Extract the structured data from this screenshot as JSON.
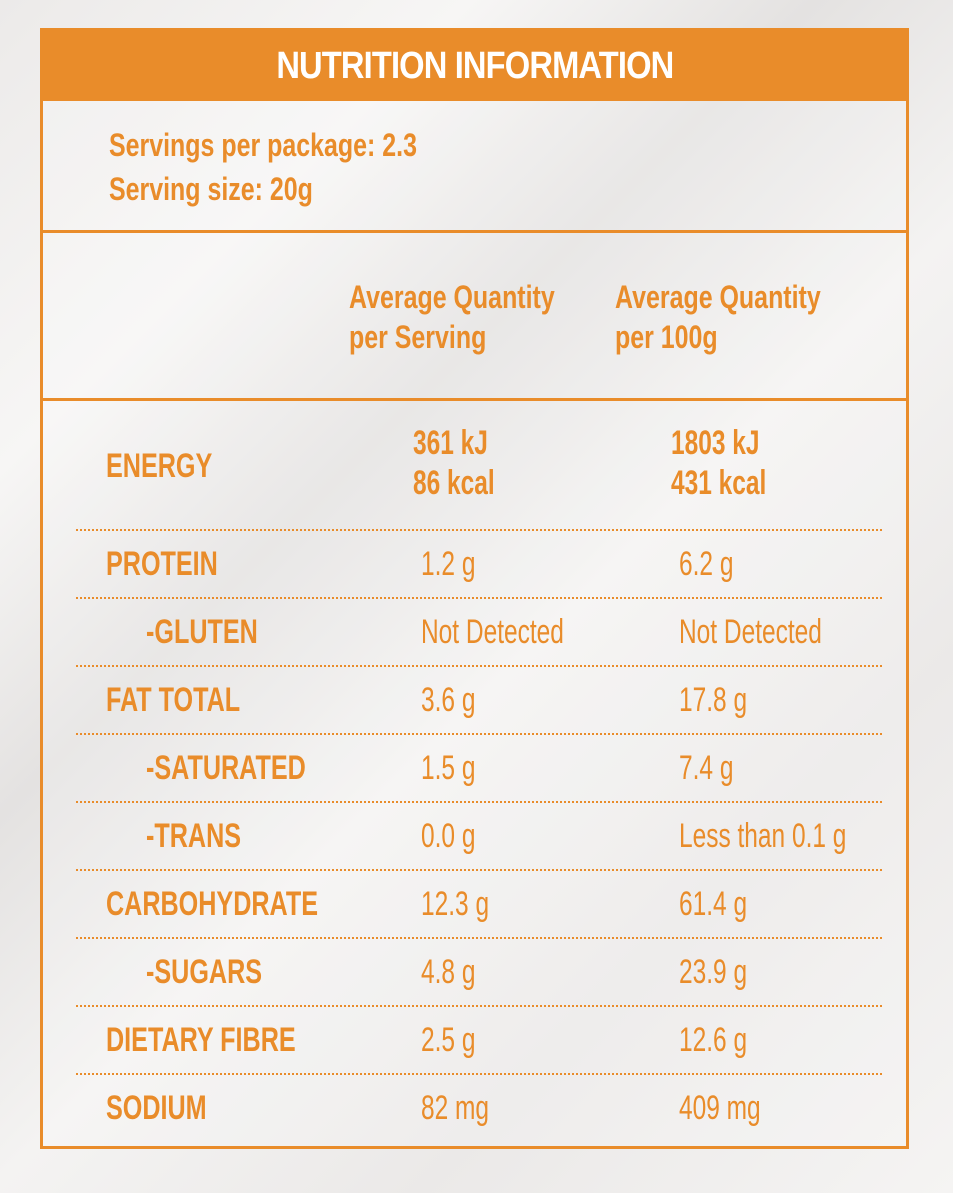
{
  "title": "NUTRITION INFORMATION",
  "servings_per_package": "Servings per package: 2.3",
  "serving_size": "Serving size: 20g",
  "columns": {
    "per_serving": [
      "Average Quantity",
      "per Serving"
    ],
    "per_100g": [
      "Average Quantity",
      "per 100g"
    ]
  },
  "energy": {
    "label": "ENERGY",
    "per_serving": [
      "361 kJ",
      "86 kcal"
    ],
    "per_100g": [
      "1803 kJ",
      "431 kcal"
    ]
  },
  "rows": [
    {
      "label": "PROTEIN",
      "sub": false,
      "per_serving": "1.2 g",
      "per_100g": "6.2 g"
    },
    {
      "label": "-GLUTEN",
      "sub": true,
      "per_serving": "Not Detected",
      "per_100g": "Not Detected"
    },
    {
      "label": "FAT TOTAL",
      "sub": false,
      "per_serving": "3.6 g",
      "per_100g": "17.8 g"
    },
    {
      "label": "-SATURATED",
      "sub": true,
      "per_serving": "1.5 g",
      "per_100g": "7.4 g"
    },
    {
      "label": "-TRANS",
      "sub": true,
      "per_serving": "0.0 g",
      "per_100g": "Less than 0.1 g"
    },
    {
      "label": "CARBOHYDRATE",
      "sub": false,
      "per_serving": "12.3 g",
      "per_100g": "61.4 g"
    },
    {
      "label": "-SUGARS",
      "sub": true,
      "per_serving": "4.8 g",
      "per_100g": "23.9 g"
    },
    {
      "label": "DIETARY FIBRE",
      "sub": false,
      "per_serving": "2.5 g",
      "per_100g": "12.6 g"
    },
    {
      "label": "SODIUM",
      "sub": false,
      "per_serving": "82 mg",
      "per_100g": "409 mg"
    }
  ],
  "colors": {
    "accent": "#e98c2a",
    "title_text": "#ffffff"
  }
}
